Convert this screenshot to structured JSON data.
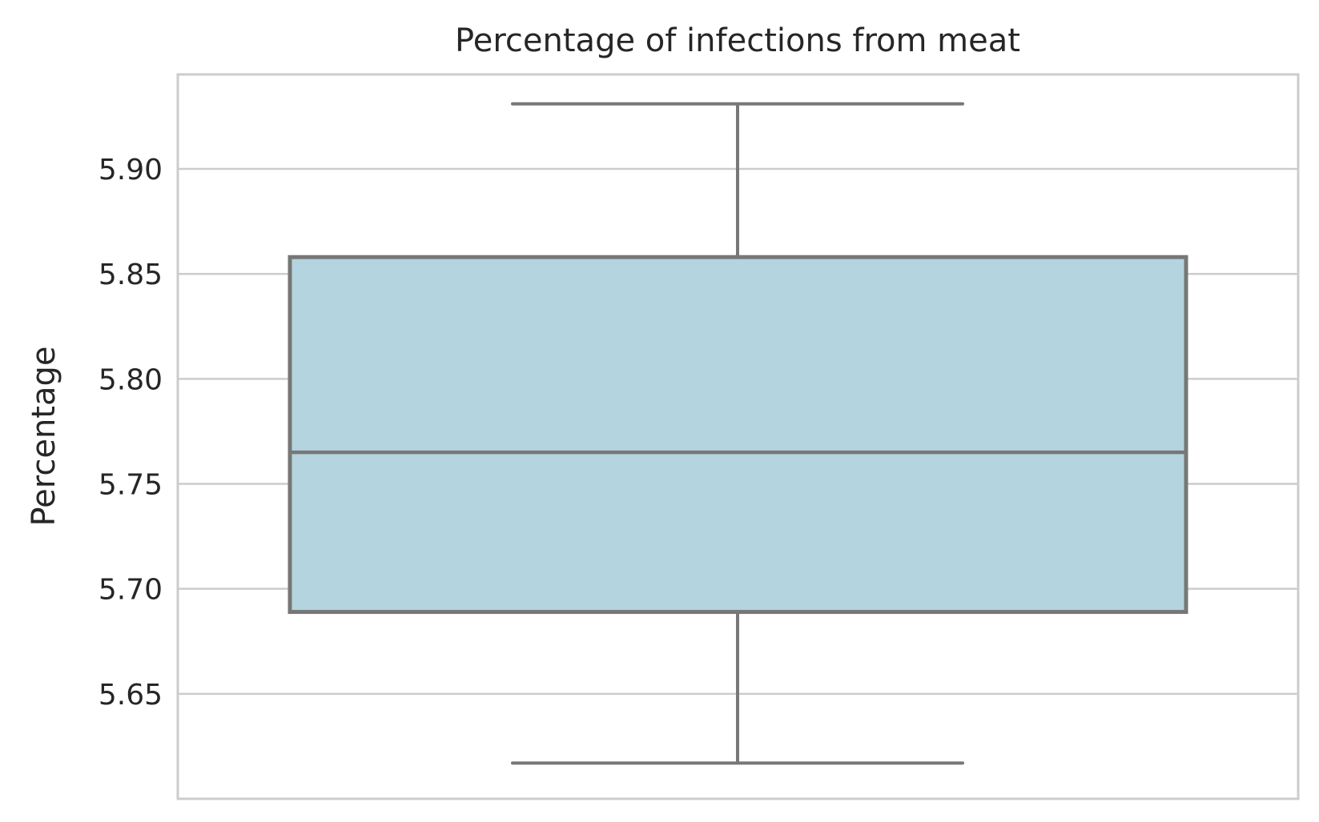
{
  "chart_data": {
    "type": "box",
    "title": "Percentage of infections from meat",
    "xlabel": "",
    "ylabel": "Percentage",
    "ylim": [
      5.6,
      5.945
    ],
    "yticks": [
      5.65,
      5.7,
      5.75,
      5.8,
      5.85,
      5.9
    ],
    "ytick_labels": [
      "5.65",
      "5.70",
      "5.75",
      "5.80",
      "5.85",
      "5.90"
    ],
    "grid": true,
    "box": {
      "whisker_low": 5.617,
      "q1": 5.689,
      "median": 5.765,
      "q3": 5.858,
      "whisker_high": 5.931
    },
    "colors": {
      "box_fill": "#b4d4df",
      "box_line": "#777777",
      "grid": "#cccccc",
      "frame": "#cccccc",
      "text": "#262626"
    }
  }
}
